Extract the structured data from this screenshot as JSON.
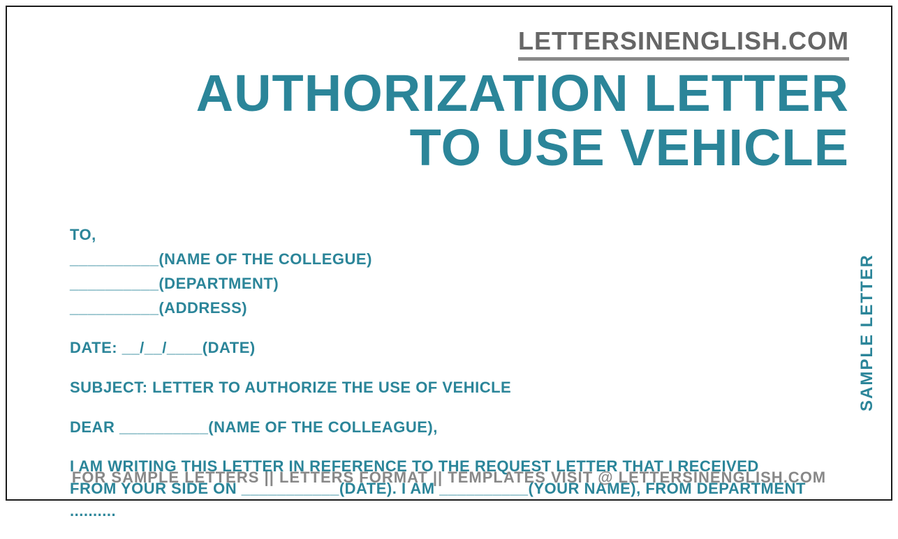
{
  "colors": {
    "accent": "#2b8599",
    "gray": "#888888",
    "border": "#1a1a1a",
    "background": "#ffffff"
  },
  "header": {
    "website": "LETTERSINENGLISH.COM"
  },
  "title": {
    "line1": "AUTHORIZATION LETTER",
    "line2": "TO USE VEHICLE"
  },
  "side_label": "SAMPLE LETTER",
  "body": {
    "to_label": "TO,",
    "recipient_name": "__________(NAME OF THE COLLEGUE)",
    "recipient_dept": "__________(DEPARTMENT)",
    "recipient_addr": "__________(ADDRESS)",
    "date": "DATE: __/__/____(DATE)",
    "subject": "SUBJECT: LETTER TO AUTHORIZE THE USE OF VEHICLE",
    "salutation": "DEAR __________(NAME OF THE COLLEAGUE),",
    "para": "I AM WRITING THIS LETTER IN REFERENCE TO THE REQUEST LETTER THAT I RECEIVED FROM YOUR SIDE ON ___________(DATE). I AM __________(YOUR NAME), FROM DEPARTMENT .........."
  },
  "footer": "FOR SAMPLE LETTERS || LETTERS FORMAT || TEMPLATES VISIT @ LETTERSINENGLISH.COM"
}
